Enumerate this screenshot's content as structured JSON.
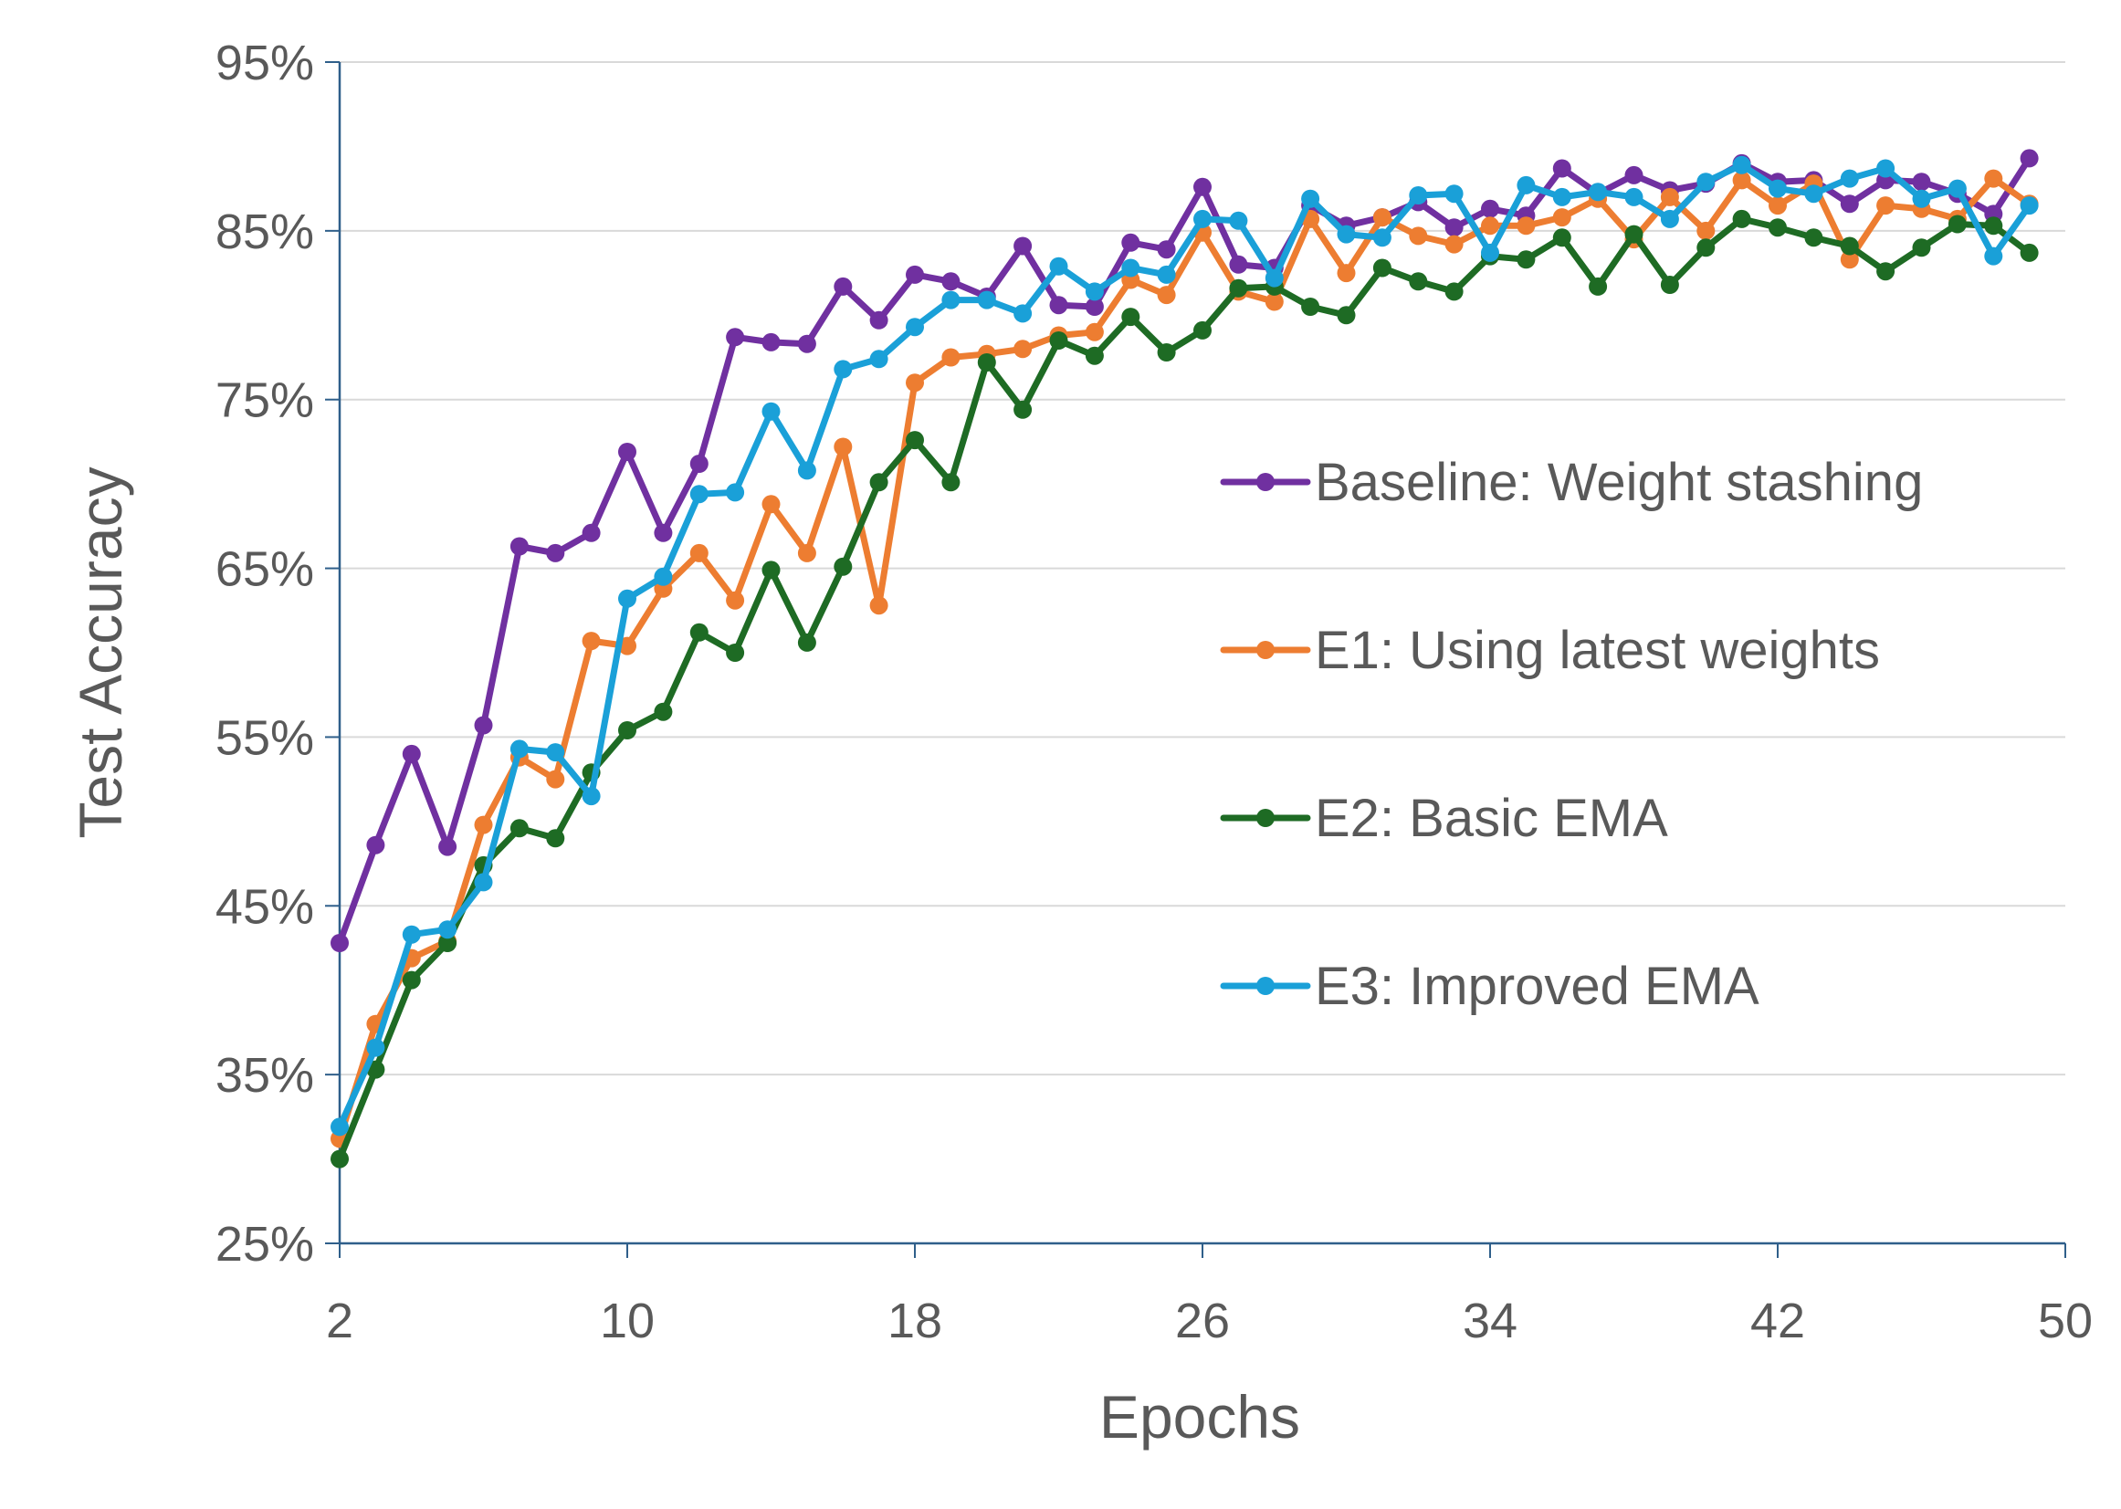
{
  "chart_data": {
    "type": "line",
    "title": "",
    "xlabel": "Epochs",
    "ylabel": "Test Accuracy",
    "xlim": [
      2,
      50
    ],
    "ylim": [
      25,
      95
    ],
    "xticks": [
      2,
      10,
      18,
      26,
      34,
      42,
      50
    ],
    "yticks": [
      25,
      35,
      45,
      55,
      65,
      75,
      85,
      95
    ],
    "ytick_labels": [
      "25%",
      "35%",
      "45%",
      "55%",
      "65%",
      "75%",
      "85%",
      "95%"
    ],
    "xtick_labels": [
      "2",
      "10",
      "18",
      "26",
      "34",
      "42",
      "50"
    ],
    "grid": "horizontal",
    "legend_position": "center-right",
    "x": [
      2,
      3,
      4,
      5,
      6,
      7,
      8,
      9,
      10,
      11,
      12,
      13,
      14,
      15,
      16,
      17,
      18,
      19,
      20,
      21,
      22,
      23,
      24,
      25,
      26,
      27,
      28,
      29,
      30,
      31,
      32,
      33,
      34,
      35,
      36,
      37,
      38,
      39,
      40,
      41,
      42,
      43,
      44,
      45,
      46,
      47,
      48,
      49
    ],
    "series": [
      {
        "name": "Baseline: Weight stashing",
        "color": "#7030A0",
        "values": [
          42.8,
          48.6,
          54.0,
          48.5,
          55.7,
          66.3,
          65.9,
          67.1,
          71.9,
          67.1,
          71.2,
          78.7,
          78.4,
          78.3,
          81.7,
          79.7,
          82.4,
          82.0,
          81.1,
          84.1,
          80.6,
          80.5,
          84.3,
          83.9,
          87.6,
          83.0,
          82.8,
          86.5,
          85.3,
          85.8,
          86.7,
          85.2,
          86.3,
          85.9,
          88.7,
          87.2,
          88.3,
          87.4,
          87.8,
          89.0,
          87.9,
          88.0,
          86.6,
          88.0,
          87.9,
          87.2,
          86.0,
          89.3
        ]
      },
      {
        "name": "E1: Using latest weights",
        "color": "#ED7D31",
        "values": [
          31.2,
          38.0,
          41.9,
          42.9,
          49.8,
          53.8,
          52.5,
          60.7,
          60.4,
          63.8,
          65.9,
          63.1,
          68.8,
          65.9,
          72.2,
          62.8,
          76.0,
          77.5,
          77.7,
          78.0,
          78.8,
          79.0,
          82.1,
          81.2,
          84.9,
          81.4,
          80.8,
          85.7,
          82.5,
          85.8,
          84.7,
          84.2,
          85.3,
          85.3,
          85.8,
          86.9,
          84.5,
          87.0,
          85.0,
          88.0,
          86.5,
          87.8,
          83.3,
          86.5,
          86.3,
          85.7,
          88.1,
          86.6
        ]
      },
      {
        "name": "E2: Basic EMA",
        "color": "#1E6B24",
        "values": [
          30.0,
          35.3,
          40.6,
          42.8,
          47.4,
          49.6,
          49.0,
          52.9,
          55.4,
          56.5,
          61.2,
          60.0,
          64.9,
          60.6,
          65.1,
          70.1,
          72.6,
          70.1,
          77.2,
          74.4,
          78.5,
          77.6,
          79.9,
          77.8,
          79.1,
          81.6,
          81.7,
          80.5,
          80.0,
          82.8,
          82.0,
          81.4,
          83.5,
          83.3,
          84.6,
          81.7,
          84.8,
          81.8,
          84.0,
          85.7,
          85.2,
          84.6,
          84.1,
          82.6,
          84.0,
          85.4,
          85.3,
          83.7
        ]
      },
      {
        "name": "E3: Improved EMA",
        "color": "#1AA0D8",
        "values": [
          31.9,
          36.6,
          43.3,
          43.6,
          46.4,
          54.3,
          54.1,
          51.5,
          63.2,
          64.5,
          69.4,
          69.5,
          74.3,
          70.8,
          76.8,
          77.4,
          79.3,
          80.9,
          80.9,
          80.1,
          82.9,
          81.4,
          82.8,
          82.4,
          85.7,
          85.6,
          82.2,
          86.9,
          84.8,
          84.6,
          87.1,
          87.2,
          83.7,
          87.7,
          87.0,
          87.3,
          87.0,
          85.7,
          87.9,
          88.9,
          87.5,
          87.2,
          88.1,
          88.7,
          86.9,
          87.5,
          83.5,
          86.5
        ]
      }
    ]
  }
}
